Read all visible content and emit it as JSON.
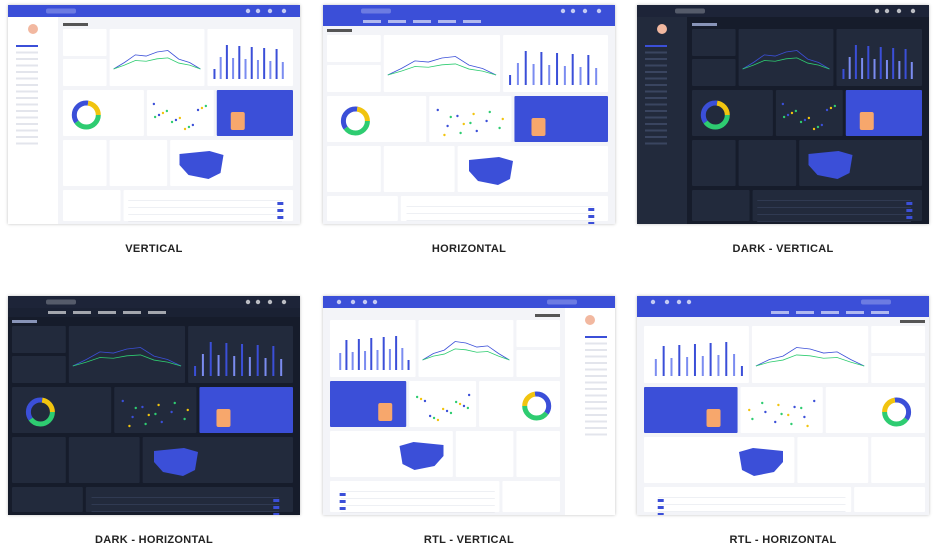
{
  "screens": [
    {
      "caption": "VERTICAL"
    },
    {
      "caption": "HORIZONTAL"
    },
    {
      "caption": "DARK - VERTICAL"
    },
    {
      "caption": "DARK - HORIZONTAL"
    },
    {
      "caption": "RTL - VERTICAL"
    },
    {
      "caption": "RTL - HORIZONTAL"
    }
  ]
}
